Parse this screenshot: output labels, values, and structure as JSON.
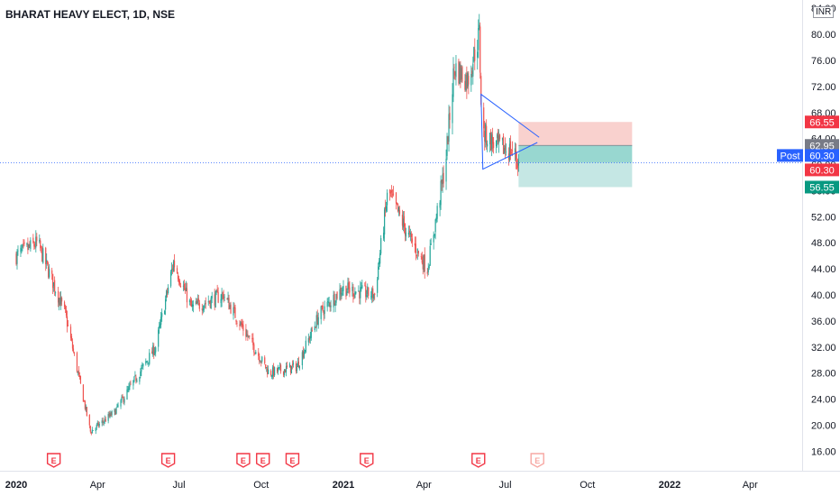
{
  "header": {
    "title": "BHARAT HEAVY ELECT, 1D, NSE",
    "currency": "INR"
  },
  "price_axis": {
    "ticks": [
      "84.00",
      "80.00",
      "76.00",
      "72.00",
      "68.00",
      "64.00",
      "60.00",
      "56.00",
      "52.00",
      "48.00",
      "44.00",
      "40.00",
      "36.00",
      "32.00",
      "28.00",
      "24.00",
      "20.00",
      "16.00"
    ]
  },
  "price_labels": [
    {
      "text": "66.55",
      "value": 66.55,
      "color": "#f23645"
    },
    {
      "text": "62.95",
      "value": 62.95,
      "color": "#787b86"
    },
    {
      "text": "60.30",
      "value": 60.3,
      "color": "#2962ff",
      "tag": "Post"
    },
    {
      "text": "60.30",
      "value": 60.3,
      "color": "#f23645"
    },
    {
      "text": "56.55",
      "value": 56.55,
      "color": "#089981"
    }
  ],
  "time_axis": {
    "ticks": [
      "2020",
      "Apr",
      "Jul",
      "Oct",
      "2021",
      "Apr",
      "Jul",
      "Oct",
      "2022",
      "Apr"
    ]
  },
  "event_marker_label": "E",
  "colors": {
    "up": "#26a69a",
    "down": "#ef5350",
    "stop_zone": "#f7c1bd",
    "target_zone": "#b2dfdb",
    "triangle": "#2962ff",
    "crosshair": "#2962ff"
  },
  "chart_data": {
    "type": "candlestick",
    "symbol": "BHARAT HEAVY ELECT",
    "interval": "1D",
    "exchange": "NSE",
    "currency": "INR",
    "ylim": [
      13,
      85
    ],
    "last_price": 60.3,
    "key_points": [
      {
        "date": "2020-01-01",
        "close": 46
      },
      {
        "date": "2020-01-25",
        "close": 48
      },
      {
        "date": "2020-02-25",
        "close": 37
      },
      {
        "date": "2020-03-24",
        "close": 19
      },
      {
        "date": "2020-04-20",
        "close": 22
      },
      {
        "date": "2020-06-05",
        "close": 32
      },
      {
        "date": "2020-06-25",
        "close": 45
      },
      {
        "date": "2020-07-15",
        "close": 38
      },
      {
        "date": "2020-08-20",
        "close": 40
      },
      {
        "date": "2020-09-10",
        "close": 35
      },
      {
        "date": "2020-10-10",
        "close": 28
      },
      {
        "date": "2020-11-10",
        "close": 29
      },
      {
        "date": "2020-12-05",
        "close": 37
      },
      {
        "date": "2020-12-31",
        "close": 41
      },
      {
        "date": "2021-02-05",
        "close": 40
      },
      {
        "date": "2021-02-20",
        "close": 56
      },
      {
        "date": "2021-03-15",
        "close": 49
      },
      {
        "date": "2021-04-05",
        "close": 44
      },
      {
        "date": "2021-04-25",
        "close": 60
      },
      {
        "date": "2021-05-05",
        "close": 75
      },
      {
        "date": "2021-05-20",
        "close": 73
      },
      {
        "date": "2021-06-02",
        "close": 80
      },
      {
        "date": "2021-06-05",
        "close": 65
      },
      {
        "date": "2021-06-20",
        "close": 63
      },
      {
        "date": "2021-07-10",
        "close": 62
      },
      {
        "date": "2021-07-16",
        "close": 60.3
      }
    ],
    "position": {
      "type": "short",
      "entry": 62.95,
      "stop": 66.55,
      "target": 56.55
    },
    "event_dates": [
      "2020-02-12",
      "2020-06-19",
      "2020-09-11",
      "2020-10-03",
      "2020-11-05",
      "2021-01-27",
      "2021-06-01",
      "2021-08-06"
    ]
  }
}
